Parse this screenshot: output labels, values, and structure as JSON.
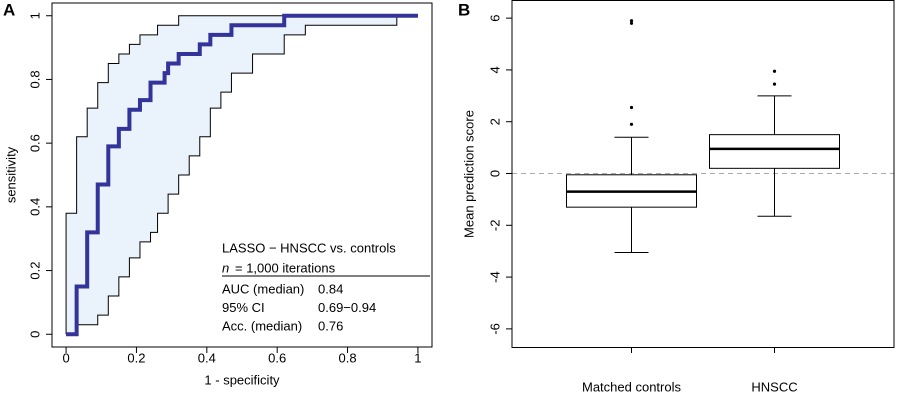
{
  "chart_data": [
    {
      "type": "line",
      "panel": "A",
      "x_label": "1 - specificity",
      "y_label": "sensitivity",
      "xlim": [
        -0.04,
        1.04
      ],
      "ylim": [
        -0.04,
        1.04
      ],
      "xticks": [
        0,
        0.2,
        0.4,
        0.6,
        0.8,
        1
      ],
      "yticks": [
        0,
        0.2,
        0.4,
        0.6,
        0.8,
        1
      ],
      "band_color": "#eaf2fb",
      "series": [
        {
          "color": "#333399",
          "width": 4,
          "x": [
            0,
            0.03,
            0.03,
            0.06,
            0.06,
            0.09,
            0.09,
            0.12,
            0.12,
            0.15,
            0.15,
            0.18,
            0.18,
            0.21,
            0.21,
            0.24,
            0.24,
            0.28,
            0.28,
            0.29,
            0.29,
            0.32,
            0.32,
            0.38,
            0.38,
            0.41,
            0.41,
            0.47,
            0.47,
            0.62,
            0.62,
            1
          ],
          "values": [
            0,
            0,
            0.15,
            0.15,
            0.32,
            0.32,
            0.47,
            0.47,
            0.59,
            0.59,
            0.645,
            0.645,
            0.705,
            0.705,
            0.735,
            0.735,
            0.79,
            0.79,
            0.82,
            0.82,
            0.85,
            0.85,
            0.88,
            0.88,
            0.91,
            0.91,
            0.94,
            0.94,
            0.97,
            0.97,
            1,
            1
          ]
        },
        {
          "color": "#000000",
          "width": 1,
          "x": [
            0,
            0,
            0.03,
            0.03,
            0.06,
            0.06,
            0.09,
            0.09,
            0.12,
            0.12,
            0.15,
            0.15,
            0.18,
            0.18,
            0.21,
            0.21,
            0.26,
            0.26,
            0.32,
            0.32,
            1
          ],
          "values": [
            0,
            0.38,
            0.38,
            0.62,
            0.62,
            0.71,
            0.71,
            0.79,
            0.79,
            0.85,
            0.85,
            0.88,
            0.88,
            0.91,
            0.91,
            0.94,
            0.94,
            0.97,
            0.97,
            1,
            1
          ]
        },
        {
          "color": "#000000",
          "width": 1,
          "x": [
            0,
            0.03,
            0.03,
            0.09,
            0.09,
            0.12,
            0.12,
            0.15,
            0.15,
            0.18,
            0.18,
            0.21,
            0.21,
            0.24,
            0.24,
            0.26,
            0.26,
            0.29,
            0.29,
            0.32,
            0.32,
            0.35,
            0.35,
            0.38,
            0.38,
            0.41,
            0.41,
            0.44,
            0.44,
            0.47,
            0.47,
            0.53,
            0.53,
            0.62,
            0.62,
            0.68,
            0.68,
            0.94,
            0.94,
            1
          ],
          "values": [
            0,
            0,
            0.03,
            0.03,
            0.06,
            0.06,
            0.12,
            0.12,
            0.18,
            0.18,
            0.24,
            0.24,
            0.29,
            0.29,
            0.32,
            0.32,
            0.38,
            0.38,
            0.44,
            0.44,
            0.5,
            0.5,
            0.56,
            0.56,
            0.62,
            0.62,
            0.71,
            0.71,
            0.76,
            0.76,
            0.82,
            0.82,
            0.88,
            0.88,
            0.94,
            0.94,
            0.97,
            0.97,
            1,
            1
          ]
        }
      ],
      "annotation": {
        "title": "LASSO − HNSCC vs. controls",
        "n_symbol": "n",
        "n_text": "= 1,000 iterations",
        "rows": [
          [
            "AUC (median)",
            0.84
          ],
          [
            "95% CI",
            "0.69−0.94"
          ],
          [
            "Acc. (median)",
            0.76
          ]
        ]
      }
    },
    {
      "type": "box",
      "panel": "B",
      "y_label": "Mean prediction score",
      "categories": [
        "Matched controls",
        "HNSCC"
      ],
      "ylim": [
        -6.7,
        6.7
      ],
      "yticks": [
        -6,
        -4,
        -2,
        0,
        2,
        4,
        6
      ],
      "reference_line": 0,
      "boxes": [
        {
          "min": -3.05,
          "q1": -1.3,
          "median": -0.7,
          "q3": -0.05,
          "max": 1.4,
          "outliers": [
            1.9,
            2.55,
            5.8,
            5.9
          ]
        },
        {
          "min": -1.65,
          "q1": 0.2,
          "median": 0.95,
          "q3": 1.5,
          "max": 3.0,
          "outliers": [
            3.45,
            3.95
          ]
        }
      ]
    }
  ]
}
